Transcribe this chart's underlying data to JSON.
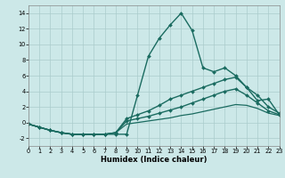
{
  "xlabel": "Humidex (Indice chaleur)",
  "ylabel": "",
  "background_color": "#cce8e8",
  "grid_color": "#aacccc",
  "line_color": "#1a6b60",
  "xlim": [
    0,
    23
  ],
  "ylim": [
    -3.0,
    15.0
  ],
  "xticks": [
    0,
    1,
    2,
    3,
    4,
    5,
    6,
    7,
    8,
    9,
    10,
    11,
    12,
    13,
    14,
    15,
    16,
    17,
    18,
    19,
    20,
    21,
    22,
    23
  ],
  "yticks": [
    -2,
    0,
    2,
    4,
    6,
    8,
    10,
    12,
    14
  ],
  "curves": [
    {
      "x": [
        0,
        1,
        2,
        3,
        4,
        5,
        6,
        7,
        8,
        9,
        10,
        11,
        12,
        13,
        14,
        15,
        16,
        17,
        18,
        19,
        20,
        21,
        22,
        23
      ],
      "y": [
        -0.2,
        -0.6,
        -1.0,
        -1.3,
        -1.5,
        -1.5,
        -1.5,
        -1.5,
        -1.5,
        -1.5,
        3.5,
        8.5,
        10.8,
        12.5,
        14.0,
        11.8,
        7.0,
        6.5,
        7.0,
        6.0,
        4.5,
        2.8,
        3.0,
        1.0
      ],
      "markers": true,
      "lw": 1.0
    },
    {
      "x": [
        0,
        1,
        2,
        3,
        4,
        5,
        6,
        7,
        8,
        9,
        10,
        11,
        12,
        13,
        14,
        15,
        16,
        17,
        18,
        19,
        20,
        21,
        22,
        23
      ],
      "y": [
        -0.2,
        -0.6,
        -1.0,
        -1.3,
        -1.5,
        -1.5,
        -1.5,
        -1.5,
        -1.3,
        0.5,
        1.0,
        1.5,
        2.2,
        3.0,
        3.5,
        4.0,
        4.5,
        5.0,
        5.5,
        5.8,
        4.5,
        3.5,
        2.0,
        1.2
      ],
      "markers": true,
      "lw": 1.0
    },
    {
      "x": [
        0,
        1,
        2,
        3,
        4,
        5,
        6,
        7,
        8,
        9,
        10,
        11,
        12,
        13,
        14,
        15,
        16,
        17,
        18,
        19,
        20,
        21,
        22,
        23
      ],
      "y": [
        -0.2,
        -0.6,
        -1.0,
        -1.3,
        -1.5,
        -1.5,
        -1.5,
        -1.5,
        -1.3,
        0.2,
        0.5,
        0.8,
        1.2,
        1.6,
        2.0,
        2.5,
        3.0,
        3.5,
        4.0,
        4.3,
        3.5,
        2.5,
        1.5,
        1.0
      ],
      "markers": true,
      "lw": 1.0
    },
    {
      "x": [
        0,
        1,
        2,
        3,
        4,
        5,
        6,
        7,
        8,
        9,
        10,
        11,
        12,
        13,
        14,
        15,
        16,
        17,
        18,
        19,
        20,
        21,
        22,
        23
      ],
      "y": [
        -0.2,
        -0.6,
        -1.0,
        -1.3,
        -1.5,
        -1.5,
        -1.5,
        -1.5,
        -1.3,
        -0.2,
        0.0,
        0.2,
        0.4,
        0.6,
        0.9,
        1.1,
        1.4,
        1.7,
        2.0,
        2.3,
        2.2,
        1.8,
        1.2,
        0.9
      ],
      "markers": false,
      "lw": 0.9
    }
  ]
}
